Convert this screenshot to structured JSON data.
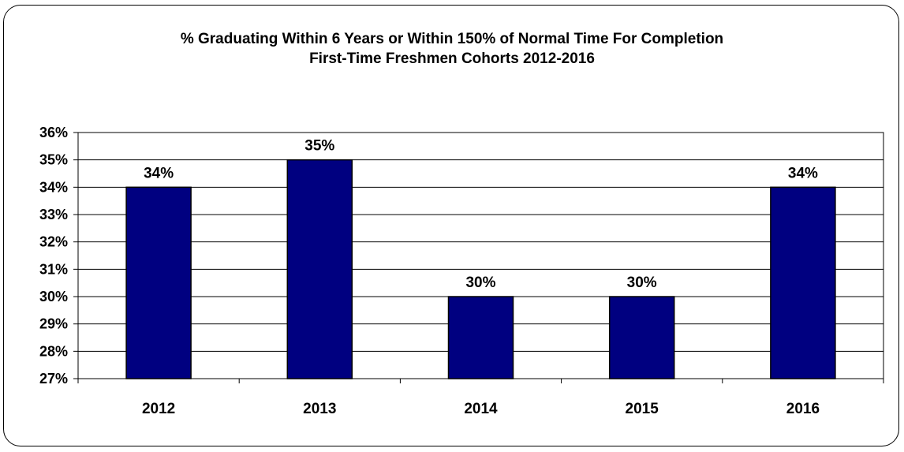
{
  "chart_data": {
    "type": "bar",
    "title": "% Graduating Within 6 Years or Within 150% of Normal Time For Completion",
    "subtitle": "First-Time Freshmen  Cohorts 2012-2016",
    "categories": [
      "2012",
      "2013",
      "2014",
      "2015",
      "2016"
    ],
    "values": [
      34,
      35,
      30,
      30,
      34
    ],
    "data_labels": [
      "34%",
      "35%",
      "30%",
      "30%",
      "34%"
    ],
    "ylim": [
      27,
      36
    ],
    "y_ticks": [
      "27%",
      "28%",
      "29%",
      "30%",
      "31%",
      "32%",
      "33%",
      "34%",
      "35%",
      "36%"
    ],
    "xlabel": "",
    "ylabel": "",
    "grid": true,
    "legend": "none",
    "bar_color": "#000080"
  }
}
